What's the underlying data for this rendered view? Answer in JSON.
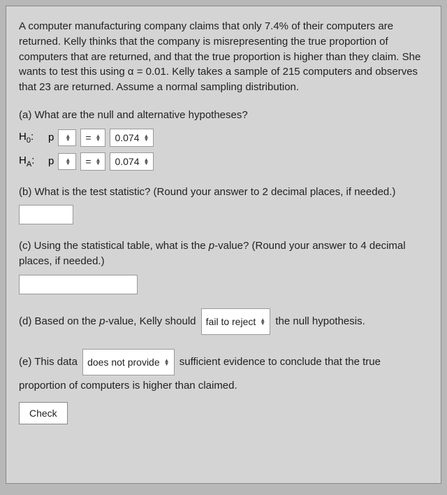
{
  "intro": "A computer manufacturing company claims that only 7.4% of their computers are returned. Kelly thinks that the company is misrepresenting the true proportion of computers that are returned, and that the true proportion is higher than they claim. She wants to test this using α = 0.01. Kelly takes a sample of 215 computers and observes that 23 are returned. Assume a normal sampling distribution.",
  "a": {
    "prompt": "(a) What are the null and alternative hypotheses?",
    "h0_prefix": "H",
    "h0_sub": "0",
    "ha_prefix": "H",
    "ha_sub": "A",
    "colon": ":",
    "param": "p",
    "op": "=",
    "value": "0.074"
  },
  "b": {
    "prompt": "(b) What is the test statistic? (Round your answer to 2 decimal places, if needed.)"
  },
  "c": {
    "prompt_before": "(c) Using the statistical table, what is the ",
    "p": "p",
    "prompt_after": "-value? (Round your answer to 4 decimal places, if needed.)"
  },
  "d": {
    "before": "(d) Based on the ",
    "p": "p",
    "mid": "-value, Kelly should",
    "sel": "fail to reject",
    "after": "the null hypothesis."
  },
  "e": {
    "before": "(e) This data",
    "sel": "does not provide",
    "after1": "sufficient evidence to conclude that the true",
    "after2": "proportion of computers is higher than claimed."
  },
  "check": "Check"
}
